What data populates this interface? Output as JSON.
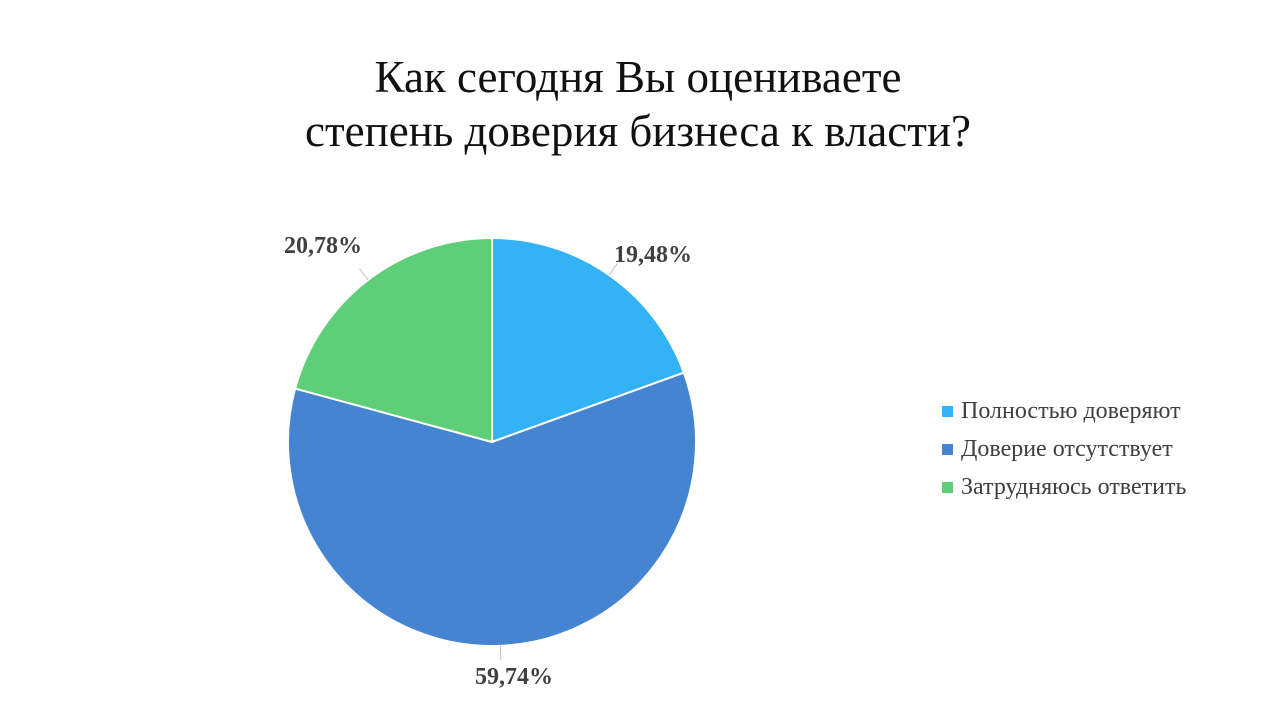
{
  "chart_data": {
    "type": "pie",
    "title_lines": [
      "Как сегодня Вы оцениваете",
      "степень доверия бизнеса к власти?"
    ],
    "categories": [
      "Полностью доверяют",
      "Доверие отсутствует",
      "Затрудняюсь ответить"
    ],
    "values": [
      19.48,
      59.74,
      20.78
    ],
    "data_labels": [
      "19,48%",
      "59,74%",
      "20,78%"
    ],
    "colors": [
      "#33b2f5",
      "#4584d1",
      "#5ecf78"
    ],
    "start_angle": "12 o'clock, clockwise",
    "legend_position": "right"
  }
}
